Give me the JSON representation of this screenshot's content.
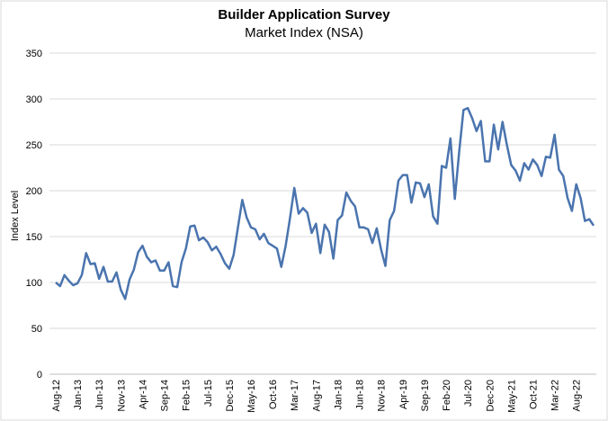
{
  "chart_data": {
    "type": "line",
    "title": "Builder Application Survey",
    "subtitle": "Market Index (NSA)",
    "xlabel": "",
    "ylabel": "Index Level",
    "ylim": [
      0,
      350
    ],
    "y_ticks": [
      0,
      50,
      100,
      150,
      200,
      250,
      300,
      350
    ],
    "grid": true,
    "legend": "none",
    "x_tick_labels": [
      "Aug-12",
      "Jan-13",
      "Jun-13",
      "Nov-13",
      "Apr-14",
      "Sep-14",
      "Feb-15",
      "Jul-15",
      "Dec-15",
      "May-16",
      "Oct-16",
      "Mar-17",
      "Aug-17",
      "Jan-18",
      "Jun-18",
      "Nov-18",
      "Apr-19",
      "Sep-19",
      "Feb-20",
      "Jul-20",
      "Dec-20",
      "May-21",
      "Oct-21",
      "Mar-22",
      "Aug-22"
    ],
    "x_start": "Aug-12",
    "x_end": "Dec-22",
    "series": [
      {
        "name": "Market Index (NSA)",
        "color": "#4a74ae",
        "values": [
          100,
          96,
          108,
          102,
          97,
          99,
          108,
          132,
          120,
          121,
          104,
          117,
          101,
          101,
          111,
          92,
          82,
          103,
          114,
          133,
          140,
          128,
          122,
          124,
          113,
          113,
          122,
          96,
          95,
          122,
          137,
          161,
          162,
          146,
          149,
          144,
          135,
          139,
          131,
          121,
          115,
          130,
          160,
          190,
          171,
          160,
          158,
          147,
          153,
          143,
          140,
          137,
          117,
          140,
          170,
          203,
          175,
          181,
          176,
          154,
          164,
          132,
          163,
          155,
          126,
          168,
          173,
          198,
          189,
          183,
          160,
          160,
          158,
          143,
          159,
          136,
          118,
          168,
          178,
          211,
          217,
          217,
          187,
          209,
          208,
          193,
          207,
          172,
          164,
          227,
          225,
          257,
          191,
          242,
          288,
          290,
          279,
          265,
          276,
          232,
          232,
          272,
          245,
          275,
          250,
          228,
          222,
          211,
          230,
          223,
          234,
          228,
          216,
          237,
          236,
          261,
          223,
          216,
          192,
          178,
          207,
          192,
          167,
          169,
          162
        ]
      }
    ]
  }
}
